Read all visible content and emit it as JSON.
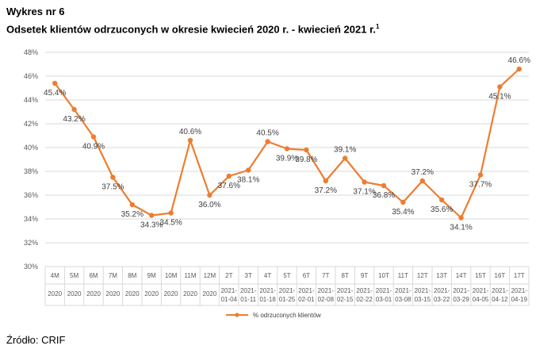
{
  "header": {
    "kicker": "Wykres nr 6",
    "title": "Odsetek klientów odrzuconych w okresie kwiecień 2020 r. - kwiecień 2021 r.",
    "title_footnote_marker": "1"
  },
  "footer": {
    "source": "Źródło: CRIF"
  },
  "chart_data": {
    "type": "line",
    "title": "Odsetek klientów odrzuconych w okresie kwiecień 2020 r. - kwiecień 2021 r.",
    "xlabel": "",
    "ylabel": "",
    "ylim": [
      30,
      48
    ],
    "y_ticks": [
      "30%",
      "32%",
      "34%",
      "36%",
      "38%",
      "40%",
      "42%",
      "44%",
      "46%",
      "48%"
    ],
    "grid": true,
    "legend_position": "bottom",
    "categories": [
      {
        "top": "4M",
        "bottom": [
          "2020"
        ]
      },
      {
        "top": "5M",
        "bottom": [
          "2020"
        ]
      },
      {
        "top": "6M",
        "bottom": [
          "2020"
        ]
      },
      {
        "top": "7M",
        "bottom": [
          "2020"
        ]
      },
      {
        "top": "8M",
        "bottom": [
          "2020"
        ]
      },
      {
        "top": "9M",
        "bottom": [
          "2020"
        ]
      },
      {
        "top": "10M",
        "bottom": [
          "2020"
        ]
      },
      {
        "top": "11M",
        "bottom": [
          "2020"
        ]
      },
      {
        "top": "12M",
        "bottom": [
          "2020"
        ]
      },
      {
        "top": "2T",
        "bottom": [
          "2021-",
          "01-04"
        ]
      },
      {
        "top": "3T",
        "bottom": [
          "2021-",
          "01-11"
        ]
      },
      {
        "top": "4T",
        "bottom": [
          "2021-",
          "01-18"
        ]
      },
      {
        "top": "5T",
        "bottom": [
          "2021-",
          "01-25"
        ]
      },
      {
        "top": "6T",
        "bottom": [
          "2021-",
          "02-01"
        ]
      },
      {
        "top": "7T",
        "bottom": [
          "2021-",
          "02-08"
        ]
      },
      {
        "top": "8T",
        "bottom": [
          "2021-",
          "02-15"
        ]
      },
      {
        "top": "9T",
        "bottom": [
          "2021-",
          "02-22"
        ]
      },
      {
        "top": "10T",
        "bottom": [
          "2021-",
          "03-01"
        ]
      },
      {
        "top": "11T",
        "bottom": [
          "2021-",
          "03-08"
        ]
      },
      {
        "top": "12T",
        "bottom": [
          "2021-",
          "03-15"
        ]
      },
      {
        "top": "13T",
        "bottom": [
          "2021-",
          "03-22"
        ]
      },
      {
        "top": "14T",
        "bottom": [
          "2021-",
          "03-29"
        ]
      },
      {
        "top": "15T",
        "bottom": [
          "2021-",
          "04-05"
        ]
      },
      {
        "top": "16T",
        "bottom": [
          "2021-",
          "04-12"
        ]
      },
      {
        "top": "17T",
        "bottom": [
          "2021-",
          "04-19"
        ]
      }
    ],
    "series": [
      {
        "name": "% odrzuconych klientów",
        "color": "#ED7D31",
        "values": [
          45.4,
          43.2,
          40.9,
          37.5,
          35.2,
          34.3,
          34.5,
          40.6,
          36.0,
          37.6,
          38.1,
          40.5,
          39.9,
          39.8,
          37.2,
          39.1,
          37.1,
          36.8,
          35.4,
          37.2,
          35.6,
          34.1,
          37.7,
          45.1,
          46.6
        ],
        "labels": [
          "45.4%",
          "43.2%",
          "40.9%",
          "37.5%",
          "35.2%",
          "34.3%",
          "34.5%",
          "40.6%",
          "36.0%",
          "37.6%",
          "38.1%",
          "40.5%",
          "39.9%",
          "39.8%",
          "37.2%",
          "39.1%",
          "37.1%",
          "36.8%",
          "35.4%",
          "37.2%",
          "35.6%",
          "34.1%",
          "37.7%",
          "45.1%",
          "46.6%"
        ]
      }
    ],
    "colors": {
      "line": "#ED7D31",
      "grid": "#D9D9D9",
      "axis_text": "#595959"
    }
  }
}
